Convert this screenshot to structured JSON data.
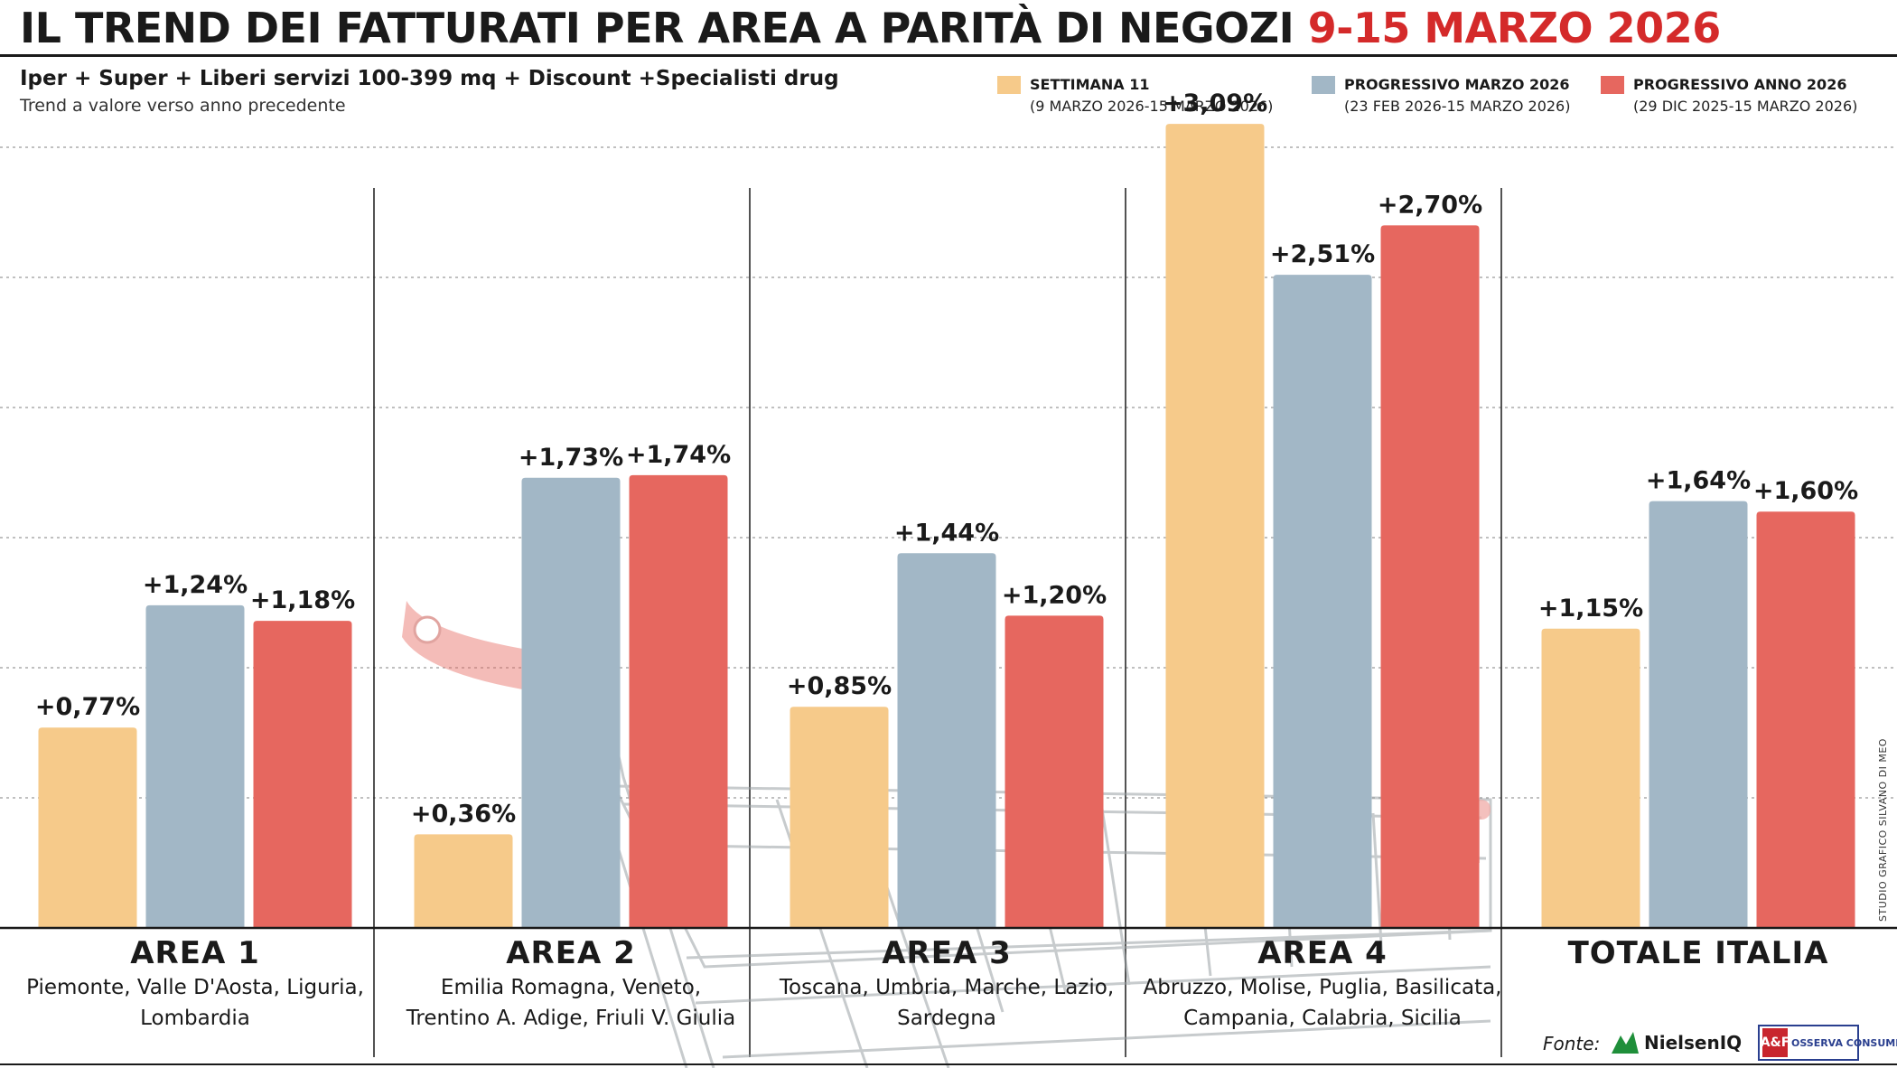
{
  "title": {
    "main": "IL TREND DEI FATTURATI PER AREA A PARITÀ DI NEGOZI",
    "highlight": "9-15 MARZO 2026"
  },
  "subtitle": "Iper + Super + Liberi servizi 100-399 mq + Discount +Specialisti drug",
  "subsubtitle": "Trend a valore verso anno precedente",
  "colors": {
    "settimana": "#f6ca8a",
    "progressivo_marzo": "#a2b7c6",
    "progressivo_anno": "#e6675f"
  },
  "legend": [
    {
      "label": "SETTIMANA 11",
      "sub": "(9 MARZO 2026-15 MARZO 2026)"
    },
    {
      "label": "PROGRESSIVO MARZO 2026",
      "sub": "(23 FEB 2026-15 MARZO 2026)"
    },
    {
      "label": "PROGRESSIVO ANNO 2026",
      "sub": "(29 DIC 2025-15 MARZO 2026)"
    }
  ],
  "chart_data": {
    "type": "bar",
    "title": "IL TREND DEI FATTURATI PER AREA A PARITÀ DI NEGOZI 9-15 MARZO 2026",
    "xlabel": "",
    "ylabel": "Trend a valore verso anno precedente",
    "ylim": [
      0,
      3.5
    ],
    "grid": true,
    "categories": [
      "AREA 1",
      "AREA 2",
      "AREA 3",
      "AREA 4",
      "TOTALE ITALIA"
    ],
    "category_regions": [
      [
        "Piemonte, Valle D'Aosta, Liguria,",
        "Lombardia"
      ],
      [
        "Emilia Romagna, Veneto,",
        "Trentino A. Adige, Friuli V. Giulia"
      ],
      [
        "Toscana, Umbria, Marche, Lazio,",
        "Sardegna"
      ],
      [
        "Abruzzo, Molise, Puglia, Basilicata,",
        "Campania, Calabria, Sicilia"
      ],
      []
    ],
    "series": [
      {
        "name": "SETTIMANA 11",
        "values": [
          0.77,
          0.36,
          0.85,
          3.09,
          1.15
        ],
        "labels": [
          "+0,77%",
          "+0,36%",
          "+0,85%",
          "+3,09%",
          "+1,15%"
        ]
      },
      {
        "name": "PROGRESSIVO MARZO 2026",
        "values": [
          1.24,
          1.73,
          1.44,
          2.51,
          1.64
        ],
        "labels": [
          "+1,24%",
          "+1,73%",
          "+1,44%",
          "+2,51%",
          "+1,64%"
        ]
      },
      {
        "name": "PROGRESSIVO ANNO 2026",
        "values": [
          1.18,
          1.74,
          1.2,
          2.7,
          1.6
        ],
        "labels": [
          "+1,18%",
          "+1,74%",
          "+1,20%",
          "+2,70%",
          "+1,60%"
        ]
      }
    ]
  },
  "footer": {
    "fonte_label": "Fonte:",
    "nielsen_logo": "NielsenIQ",
    "af_logo": "A&F",
    "af_logo_text": "OSSERVA CONSUMI",
    "credit": "STUDIO GRAFICO SILVANO DI MEO"
  }
}
